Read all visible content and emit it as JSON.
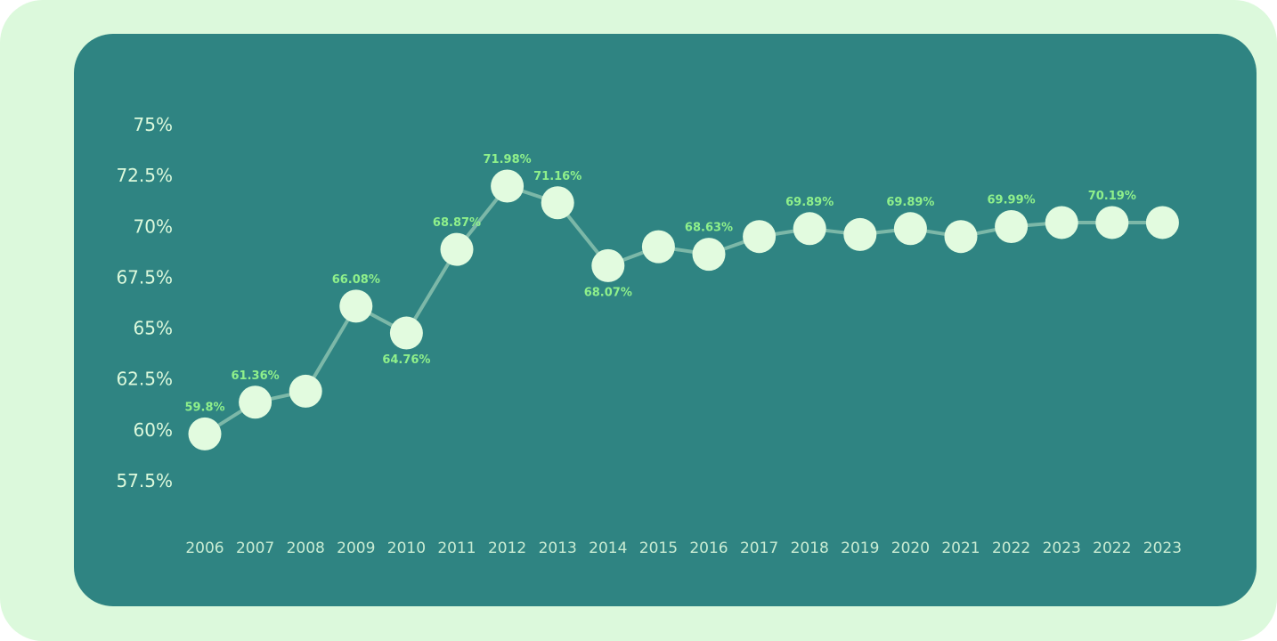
{
  "chart_data": {
    "type": "line",
    "title": "",
    "xlabel": "",
    "ylabel": "",
    "ylim": [
      57.5,
      75
    ],
    "y_ticks": [
      "57.5%",
      "60%",
      "62.5%",
      "65%",
      "67.5%",
      "70%",
      "72.5%",
      "75%"
    ],
    "y_tick_values": [
      57.5,
      60,
      62.5,
      65,
      67.5,
      70,
      72.5,
      75
    ],
    "x_labels": [
      "2006",
      "2007",
      "2008",
      "2009",
      "2010",
      "2011",
      "2012",
      "2013",
      "2014",
      "2015",
      "2016",
      "2017",
      "2018",
      "2019",
      "2020",
      "2021",
      "2022",
      "2023",
      "2022",
      "2023"
    ],
    "values": [
      59.8,
      61.36,
      61.9,
      66.08,
      64.76,
      68.87,
      71.98,
      71.16,
      68.07,
      69.0,
      68.63,
      69.5,
      69.89,
      69.6,
      69.89,
      69.5,
      69.99,
      70.19,
      70.19,
      70.19
    ],
    "data_labels": [
      {
        "index": 0,
        "text": "59.8%",
        "position": "above"
      },
      {
        "index": 1,
        "text": "61.36%",
        "position": "above"
      },
      {
        "index": 3,
        "text": "66.08%",
        "position": "above"
      },
      {
        "index": 4,
        "text": "64.76%",
        "position": "below"
      },
      {
        "index": 5,
        "text": "68.87%",
        "position": "above"
      },
      {
        "index": 6,
        "text": "71.98%",
        "position": "above"
      },
      {
        "index": 7,
        "text": "71.16%",
        "position": "above"
      },
      {
        "index": 8,
        "text": "68.07%",
        "position": "below"
      },
      {
        "index": 10,
        "text": "68.63%",
        "position": "above"
      },
      {
        "index": 12,
        "text": "69.89%",
        "position": "above"
      },
      {
        "index": 14,
        "text": "69.89%",
        "position": "above"
      },
      {
        "index": 16,
        "text": "69.99%",
        "position": "above"
      },
      {
        "index": 18,
        "text": "70.19%",
        "position": "above"
      }
    ],
    "grid": false,
    "legend": "none",
    "colors": {
      "background": "#dcf9dc",
      "panel": "#2f8482",
      "line": "#7cb8a8",
      "marker": "#e2fbdf",
      "data_label": "#8ff08b",
      "tick_label": "#dcf9dc"
    }
  }
}
